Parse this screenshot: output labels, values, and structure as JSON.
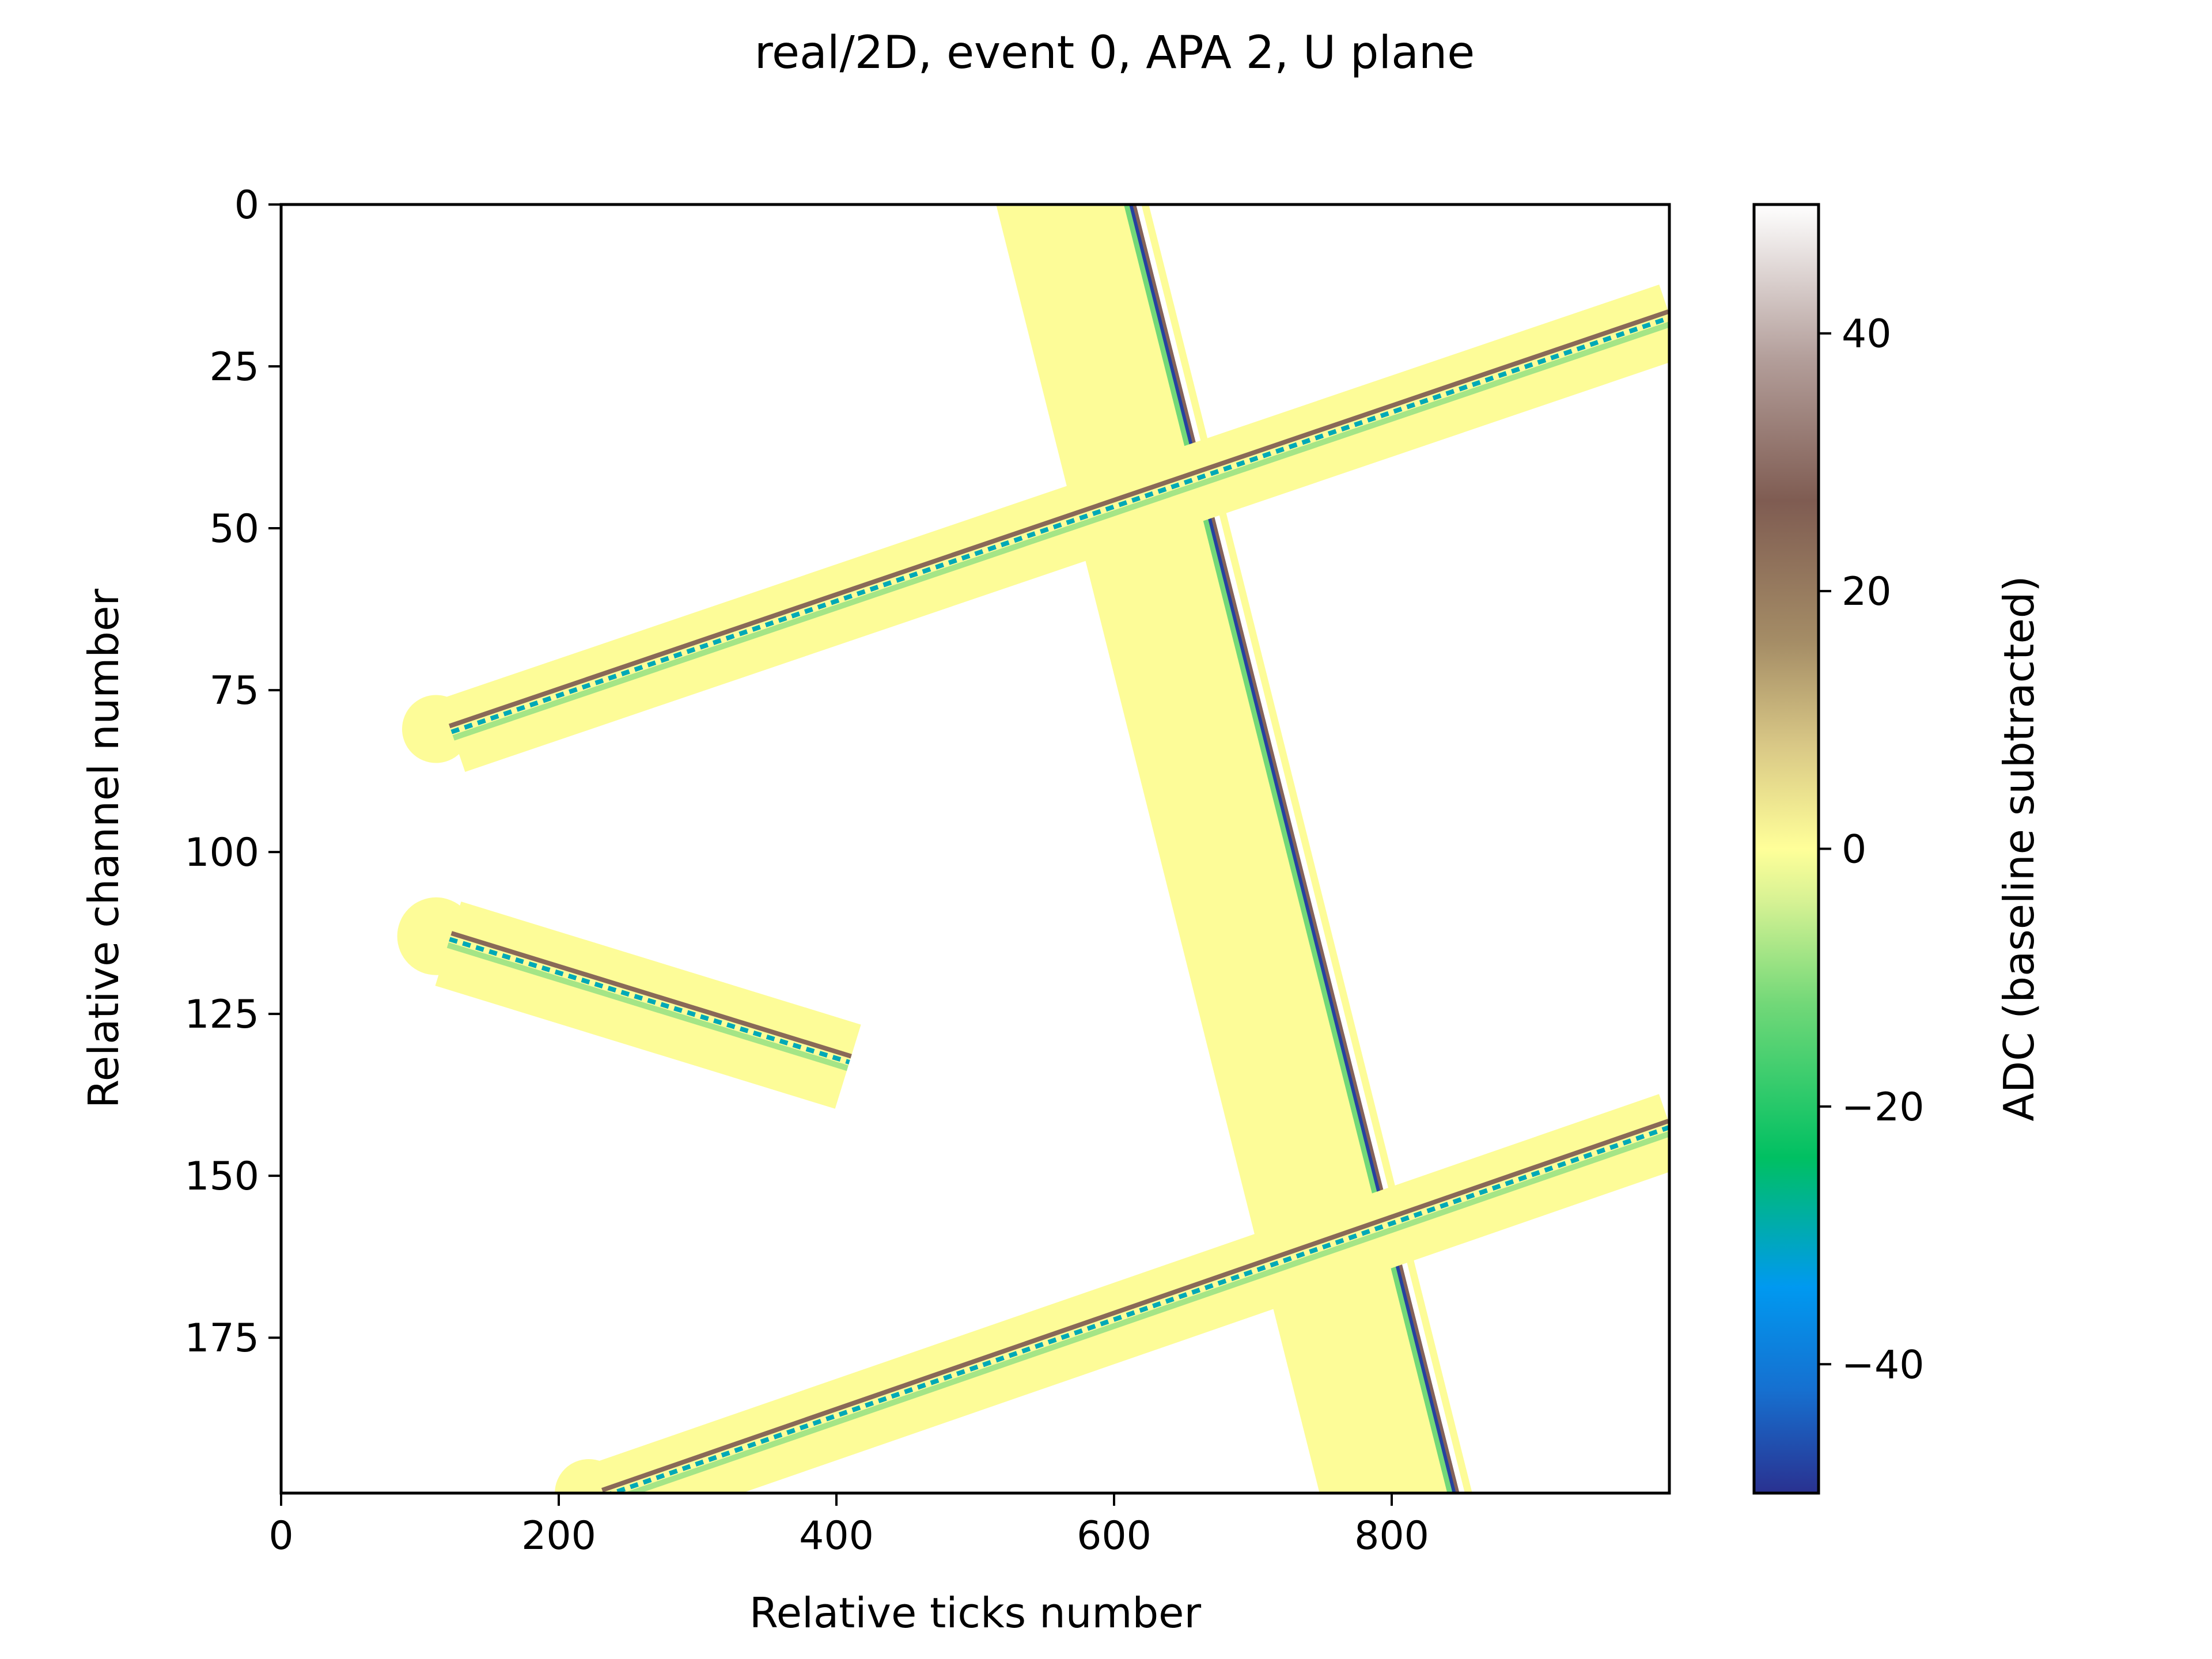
{
  "chart_data": {
    "type": "heatmap",
    "title": "real/2D, event 0, APA 2, U plane",
    "xlabel": "Relative ticks number",
    "ylabel": "Relative channel number",
    "xlim": [
      0,
      1000
    ],
    "ylim": [
      199,
      0
    ],
    "xticks": [
      0,
      200,
      400,
      600,
      800
    ],
    "yticks": [
      0,
      25,
      50,
      75,
      100,
      125,
      150,
      175
    ],
    "colorbar": {
      "label": "ADC (baseline subtracted)",
      "range": [
        -50,
        50
      ],
      "ticks": [
        -40,
        -20,
        0,
        20,
        40
      ],
      "tick_labels": [
        "−40",
        "−20",
        "0",
        "20",
        "40"
      ],
      "colormap": "terrain",
      "stops": [
        {
          "v": -50,
          "c": "#2a3190"
        },
        {
          "v": -42,
          "c": "#1670d0"
        },
        {
          "v": -34,
          "c": "#0099f0"
        },
        {
          "v": -24,
          "c": "#00c062"
        },
        {
          "v": -12,
          "c": "#72d878"
        },
        {
          "v": -4,
          "c": "#d7f294"
        },
        {
          "v": 0,
          "c": "#ffff99"
        },
        {
          "v": 8,
          "c": "#d9c886"
        },
        {
          "v": 16,
          "c": "#a58d66"
        },
        {
          "v": 27,
          "c": "#7f5c52"
        },
        {
          "v": 38,
          "c": "#b39e9a"
        },
        {
          "v": 50,
          "c": "#ffffff"
        }
      ]
    },
    "tracks": [
      {
        "name": "steep track",
        "from": [
          615,
          0
        ],
        "to": [
          848,
          199
        ],
        "halo_left": 100,
        "halo_right": 10,
        "core": 12
      },
      {
        "name": "upper diagonal track",
        "from": [
          122,
          81
        ],
        "to": [
          1000,
          17
        ],
        "halo": 7,
        "core": 1.6
      },
      {
        "name": "short track",
        "from": [
          122,
          113
        ],
        "to": [
          410,
          132
        ],
        "halo": 8,
        "core": 1.6
      },
      {
        "name": "lower diagonal track",
        "from": [
          232,
          199
        ],
        "to": [
          1000,
          142
        ],
        "halo": 7,
        "core": 1.6
      }
    ]
  }
}
